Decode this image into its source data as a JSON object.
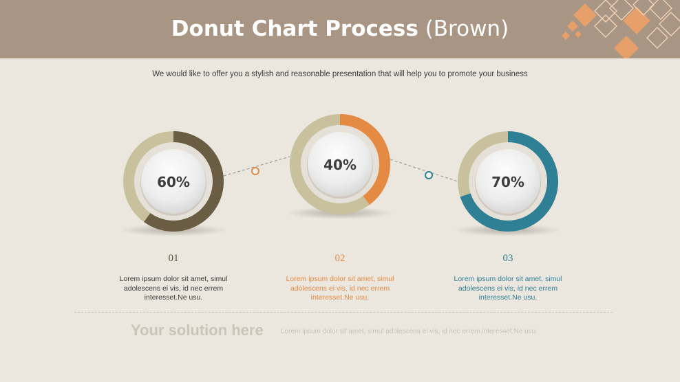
{
  "header": {
    "title_main": "Donut Chart Process",
    "title_sub": "(Brown)"
  },
  "subtitle": "We would like to offer you a stylish and reasonable presentation that will help you to promote your business",
  "chart_data": {
    "type": "donut",
    "segments": [
      {
        "label": "01",
        "value": 60,
        "value_label": "60%",
        "color": "#6b5c44",
        "track_color": "#c9c09e",
        "text": "Lorem ipsum dolor sit amet, simul adolescens ei vis, id nec errem interesset.Ne usu.",
        "text_color": "#3a3a3a",
        "num_color": "#5a4e35"
      },
      {
        "label": "02",
        "value": 40,
        "value_label": "40%",
        "color": "#e58a43",
        "track_color": "#c9c09e",
        "text": "Lorem ipsum dolor sit amet, simul adolescens ei vis, id nec errem interesset.Ne usu.",
        "text_color": "#e58a43",
        "num_color": "#e58a43"
      },
      {
        "label": "03",
        "value": 70,
        "value_label": "70%",
        "color": "#2f7f95",
        "track_color": "#c9c09e",
        "text": "Lorem ipsum dolor sit amet, simul adolescens ei vis, id nec errem interesset.Ne usu.",
        "text_color": "#2f7f95",
        "num_color": "#2f7f95"
      }
    ],
    "connector_colors": [
      "#e58a43",
      "#2f7f95"
    ]
  },
  "footer": {
    "solution_title": "Your solution here",
    "solution_text": "Lorem ipsum dolor sit amet, simul adolescens ei vis, id nec errem interesset.Ne usu."
  },
  "colors": {
    "header_bg": "#a89584",
    "accent_orange": "#e8a06a"
  }
}
